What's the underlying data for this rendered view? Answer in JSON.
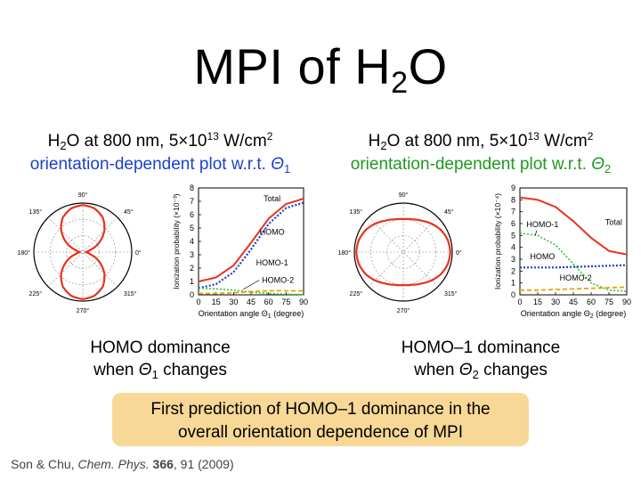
{
  "title": {
    "pre": "MPI of H",
    "sub": "2",
    "post": "O"
  },
  "left": {
    "line1": {
      "a": "H",
      "sub": "2",
      "b": "O at 800 nm, 5×10",
      "sup": "13",
      "c": " W/cm",
      "sup2": "2"
    },
    "line2": {
      "text": "orientation-dependent plot w.r.t. ",
      "theta": "Θ",
      "sub": "1"
    },
    "caption1": "HOMO dominance",
    "caption2": {
      "a": "when ",
      "theta": "Θ",
      "sub": "1",
      "b": " changes"
    }
  },
  "right": {
    "line1": {
      "a": "H",
      "sub": "2",
      "b": "O at 800 nm, 5×10",
      "sup": "13",
      "c": " W/cm",
      "sup2": "2"
    },
    "line2": {
      "text": "orientation-dependent plot w.r.t. ",
      "theta": "Θ",
      "sub": "2"
    },
    "caption1": "HOMO–1 dominance",
    "caption2": {
      "a": "when ",
      "theta": "Θ",
      "sub": "2",
      "b": " changes"
    }
  },
  "highlight": {
    "line1": "First prediction of HOMO–1 dominance in the",
    "line2": "overall orientation dependence of MPI"
  },
  "citation": {
    "authors": "Son & Chu, ",
    "journal": "Chem. Phys.",
    "volume": "366",
    "rest": ", 91 (2009)"
  },
  "colors": {
    "total": "#e8321e",
    "homo": "#1a3fd1",
    "homo1": "#2fc42f",
    "homo2": "#e8a400",
    "blue_text": "#1a3fd1",
    "green_text": "#1e9a1e",
    "box": "#f8d896"
  },
  "chart_data": [
    {
      "type": "polar",
      "angle_labels": [
        "90°",
        "45°",
        "0°",
        "315°",
        "270°",
        "225°",
        "180°",
        "135°"
      ],
      "description_shape": "figure-eight, lobes along 90°/270°",
      "r": {
        "angles_deg": [
          0,
          15,
          30,
          45,
          60,
          75,
          90
        ],
        "values": [
          0.05,
          0.15,
          0.4,
          0.65,
          0.85,
          0.96,
          1.0
        ]
      }
    },
    {
      "type": "line",
      "ylabel": "Ionization probability (×10⁻³)",
      "xlabel": {
        "a": "Orientation angle ",
        "theta": "Θ",
        "sub": "1",
        "b": " (degree)"
      },
      "x": [
        0,
        15,
        30,
        45,
        60,
        75,
        90
      ],
      "xticks": [
        "0",
        "15",
        "30",
        "45",
        "60",
        "75",
        "90"
      ],
      "yticks": [
        "0",
        "1",
        "2",
        "3",
        "4",
        "5",
        "6",
        "7",
        "8"
      ],
      "xlim": [
        0,
        90
      ],
      "ylim": [
        0,
        8
      ],
      "series": [
        {
          "name": "Total",
          "values": [
            1.0,
            1.3,
            2.2,
            3.9,
            5.7,
            6.8,
            7.2
          ]
        },
        {
          "name": "HOMO",
          "values": [
            0.5,
            0.8,
            1.7,
            3.4,
            5.3,
            6.5,
            6.9
          ]
        },
        {
          "name": "HOMO-1",
          "values": [
            0.5,
            0.45,
            0.35,
            0.2,
            0.1,
            0.05,
            0.02
          ]
        },
        {
          "name": "HOMO-2",
          "values": [
            0.1,
            0.1,
            0.15,
            0.25,
            0.3,
            0.3,
            0.3
          ]
        }
      ]
    },
    {
      "type": "polar",
      "angle_labels": [
        "90°",
        "45°",
        "0°",
        "315°",
        "270°",
        "225°",
        "180°",
        "135°"
      ],
      "description_shape": "peanut shape, lobes along 0°/180°",
      "r": {
        "angles_deg": [
          0,
          15,
          30,
          45,
          60,
          75,
          90
        ],
        "values": [
          1.0,
          0.98,
          0.93,
          0.85,
          0.77,
          0.72,
          0.7
        ]
      }
    },
    {
      "type": "line",
      "ylabel": "Ionization probability (×10⁻⁴)",
      "xlabel": {
        "a": "Orientation angle ",
        "theta": "Θ",
        "sub": "2",
        "b": " (degree)"
      },
      "x": [
        0,
        15,
        30,
        45,
        60,
        75,
        90
      ],
      "xticks": [
        "0",
        "15",
        "30",
        "45",
        "60",
        "75",
        "90"
      ],
      "yticks": [
        "0",
        "1",
        "2",
        "3",
        "4",
        "5",
        "6",
        "7",
        "8",
        "9"
      ],
      "xlim": [
        0,
        90
      ],
      "ylim": [
        0,
        9
      ],
      "series": [
        {
          "name": "Total",
          "values": [
            8.2,
            8.0,
            7.4,
            6.2,
            4.8,
            3.7,
            3.4
          ]
        },
        {
          "name": "HOMO-1",
          "values": [
            5.2,
            5.0,
            4.2,
            2.6,
            1.0,
            0.4,
            0.3
          ]
        },
        {
          "name": "HOMO",
          "values": [
            2.3,
            2.3,
            2.3,
            2.35,
            2.4,
            2.45,
            2.5
          ]
        },
        {
          "name": "HOMO-2",
          "values": [
            0.4,
            0.4,
            0.45,
            0.5,
            0.55,
            0.6,
            0.65
          ]
        }
      ]
    }
  ]
}
